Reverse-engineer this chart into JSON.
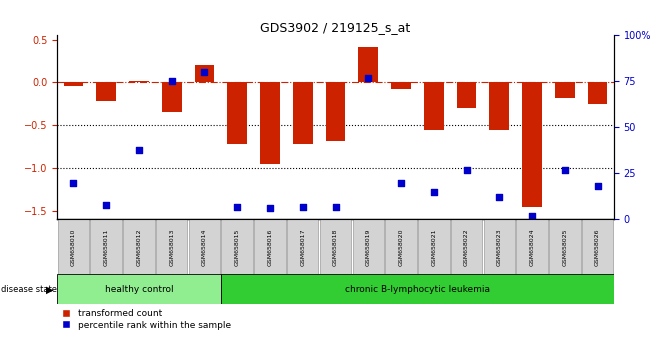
{
  "title": "GDS3902 / 219125_s_at",
  "samples": [
    "GSM658010",
    "GSM658011",
    "GSM658012",
    "GSM658013",
    "GSM658014",
    "GSM658015",
    "GSM658016",
    "GSM658017",
    "GSM658018",
    "GSM658019",
    "GSM658020",
    "GSM658021",
    "GSM658022",
    "GSM658023",
    "GSM658024",
    "GSM658025",
    "GSM658026"
  ],
  "bar_values": [
    -0.04,
    -0.22,
    0.02,
    -0.35,
    0.21,
    -0.72,
    -0.95,
    -0.72,
    -0.68,
    0.42,
    -0.08,
    -0.55,
    -0.3,
    -0.55,
    -1.45,
    -0.18,
    -0.25
  ],
  "dot_values": [
    20,
    8,
    38,
    75,
    80,
    7,
    6,
    7,
    7,
    77,
    20,
    15,
    27,
    12,
    2,
    27,
    18
  ],
  "healthy_count": 5,
  "leukemia_count": 12,
  "bar_color": "#CC2200",
  "dot_color": "#0000CC",
  "zero_line_color": "#CC2200",
  "dotted_line_color": "#000000",
  "bg_color": "#FFFFFF",
  "plot_bg_color": "#FFFFFF",
  "ylim_left": [
    -1.6,
    0.55
  ],
  "ylim_right": [
    0,
    100
  ],
  "yticks_left": [
    -1.5,
    -1.0,
    -0.5,
    0.0,
    0.5
  ],
  "yticks_right": [
    0,
    25,
    50,
    75,
    100
  ],
  "healthy_color": "#90EE90",
  "leukemia_color": "#32CD32",
  "label_bar": "transformed count",
  "label_dot": "percentile rank within the sample",
  "disease_state_label": "disease state",
  "healthy_label": "healthy control",
  "leukemia_label": "chronic B-lymphocytic leukemia"
}
